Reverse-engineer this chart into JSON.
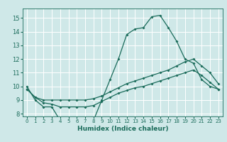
{
  "xlabel": "Humidex (Indice chaleur)",
  "ylabel": "",
  "bg_color": "#cfe8e8",
  "grid_color": "#ffffff",
  "line_color": "#1a6b5a",
  "xlim": [
    -0.5,
    23.5
  ],
  "ylim": [
    7.8,
    15.7
  ],
  "xticks": [
    0,
    1,
    2,
    3,
    4,
    5,
    6,
    7,
    8,
    9,
    10,
    11,
    12,
    13,
    14,
    15,
    16,
    17,
    18,
    19,
    20,
    21,
    22,
    23
  ],
  "yticks": [
    8,
    9,
    10,
    11,
    12,
    13,
    14,
    15
  ],
  "x": [
    0,
    1,
    2,
    3,
    4,
    5,
    6,
    7,
    8,
    9,
    10,
    11,
    12,
    13,
    14,
    15,
    16,
    17,
    18,
    19,
    20,
    21,
    22,
    23
  ],
  "series1": [
    10.0,
    9.0,
    8.5,
    8.5,
    7.5,
    7.5,
    7.5,
    7.5,
    7.5,
    9.0,
    10.5,
    12.0,
    13.8,
    14.2,
    14.3,
    15.1,
    15.2,
    14.3,
    13.3,
    12.0,
    11.7,
    10.5,
    10.0,
    9.8
  ],
  "series2": [
    9.8,
    9.2,
    9.0,
    9.0,
    9.0,
    9.0,
    9.0,
    9.0,
    9.1,
    9.3,
    9.6,
    9.9,
    10.2,
    10.4,
    10.6,
    10.8,
    11.0,
    11.2,
    11.5,
    11.8,
    12.0,
    11.5,
    11.0,
    10.2
  ],
  "series3": [
    9.8,
    9.2,
    8.8,
    8.7,
    8.5,
    8.5,
    8.5,
    8.5,
    8.6,
    8.9,
    9.2,
    9.5,
    9.7,
    9.9,
    10.0,
    10.2,
    10.4,
    10.6,
    10.8,
    11.0,
    11.2,
    10.8,
    10.3,
    9.8
  ]
}
